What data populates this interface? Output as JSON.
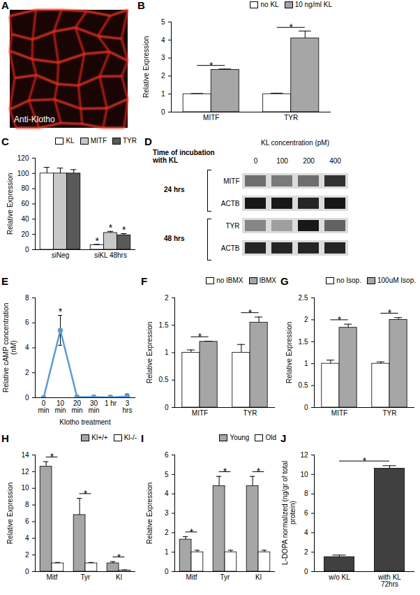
{
  "chart_data": [
    {
      "type": "image",
      "panel": "A",
      "title": "Anti-Klotho"
    },
    {
      "type": "bar",
      "panel": "B",
      "categories": [
        "MITF",
        "TYR"
      ],
      "series": [
        {
          "name": "no KL",
          "color": "#ffffff",
          "values": [
            1,
            1
          ],
          "errors": [
            0.03,
            0.05
          ]
        },
        {
          "name": "10 ng/ml KL",
          "color": "#a6a6a6",
          "values": [
            2.35,
            4.1
          ],
          "errors": [
            0.04,
            0.4
          ]
        }
      ],
      "ylabel": "Relative Expression",
      "ylim": [
        0,
        5
      ],
      "yticks": [
        0,
        1,
        2,
        3,
        4,
        5
      ],
      "legend": "top-right",
      "annotations": [
        {
          "categories": [
            "MITF"
          ],
          "text": "*"
        },
        {
          "categories": [
            "TYR"
          ],
          "text": "*"
        }
      ]
    },
    {
      "type": "bar",
      "panel": "C",
      "categories": [
        "siNeg",
        "siKL 48hrs"
      ],
      "series": [
        {
          "name": "KL",
          "color": "#ffffff",
          "values": [
            100,
            6
          ],
          "errors": [
            8,
            1
          ]
        },
        {
          "name": "MITF",
          "color": "#c8c8c8",
          "values": [
            100,
            22
          ],
          "errors": [
            7,
            2
          ]
        },
        {
          "name": "TYR",
          "color": "#595959",
          "values": [
            100,
            19
          ],
          "errors": [
            5,
            2
          ]
        }
      ],
      "ylabel": "Relative Expression",
      "ylim": [
        0,
        120
      ],
      "yticks": [
        0,
        20,
        40,
        60,
        80,
        100,
        120
      ],
      "legend": "top-right",
      "annotations": [
        {
          "categories": [
            "siKL 48hrs"
          ],
          "series": "KL",
          "text": "*"
        },
        {
          "categories": [
            "siKL 48hrs"
          ],
          "series": "MITF",
          "text": "*"
        },
        {
          "categories": [
            "siKL 48hrs"
          ],
          "series": "TYR",
          "text": "*"
        }
      ]
    },
    {
      "type": "blot",
      "panel": "D",
      "title": "KL concentration (pM)",
      "ylabel": "Time of incubation with KL",
      "concentrations": [
        0,
        100,
        200,
        400
      ],
      "intensity_range": [
        0,
        1
      ],
      "groups": [
        {
          "time": "24 hrs",
          "bands": [
            {
              "protein": "MITF",
              "intensity": [
                0.55,
                0.5,
                0.55,
                0.8
              ]
            },
            {
              "protein": "ACTB",
              "intensity": [
                0.9,
                0.9,
                0.85,
                0.9
              ]
            }
          ]
        },
        {
          "time": "48 hrs",
          "bands": [
            {
              "protein": "TYR",
              "intensity": [
                0.45,
                0.35,
                0.9,
                0.6
              ]
            },
            {
              "protein": "ACTB",
              "intensity": [
                0.85,
                0.85,
                0.85,
                0.85
              ]
            }
          ]
        }
      ]
    },
    {
      "type": "line",
      "panel": "E",
      "categories": [
        "0 min",
        "10 min",
        "20 min",
        "30 min",
        "1 hr",
        "3 hrs"
      ],
      "values": [
        0,
        5.4,
        0.05,
        0.05,
        0.03,
        0.1
      ],
      "errors": [
        0,
        1.2,
        0.1,
        0.1,
        0.15,
        0.2
      ],
      "color": "#5b9bd5",
      "marker": "circle",
      "ylabel": "Relative cAMP concentration (nM)",
      "xlabel": "Klotho treatment",
      "ylim": [
        0,
        8
      ],
      "yticks": [
        0,
        2,
        4,
        6,
        8
      ],
      "annotations": [
        {
          "categories": [
            "10 min"
          ],
          "text": "*"
        }
      ]
    },
    {
      "type": "bar",
      "panel": "F",
      "categories": [
        "MITF",
        "TYR"
      ],
      "series": [
        {
          "name": "no IBMX",
          "color": "#ffffff",
          "values": [
            1,
            1
          ],
          "errors": [
            0.05,
            0.15
          ]
        },
        {
          "name": "IBMX",
          "color": "#a6a6a6",
          "values": [
            1.2,
            1.55
          ],
          "errors": [
            0.01,
            0.1
          ]
        }
      ],
      "ylabel": "Relative Expression",
      "ylim": [
        0,
        2
      ],
      "yticks": [
        0,
        0.5,
        1,
        1.5,
        2
      ],
      "legend": "top-right",
      "annotations": [
        {
          "categories": [
            "MITF"
          ],
          "text": "*"
        },
        {
          "categories": [
            "TYR"
          ],
          "text": "*"
        }
      ]
    },
    {
      "type": "bar",
      "panel": "G",
      "categories": [
        "MITF",
        "TYR"
      ],
      "series": [
        {
          "name": "no Isop.",
          "color": "#ffffff",
          "values": [
            1,
            1
          ],
          "errors": [
            0.08,
            0.04
          ]
        },
        {
          "name": "100uM Isop.",
          "color": "#a6a6a6",
          "values": [
            1.82,
            2.0
          ],
          "errors": [
            0.08,
            0.05
          ]
        }
      ],
      "ylabel": "Relative Expression",
      "ylim": [
        0,
        2.5
      ],
      "yticks": [
        0,
        0.5,
        1,
        1.5,
        2,
        2.5
      ],
      "legend": "top-right",
      "annotations": [
        {
          "categories": [
            "MITF"
          ],
          "text": "*"
        },
        {
          "categories": [
            "TYR"
          ],
          "text": "*"
        }
      ]
    },
    {
      "type": "bar",
      "panel": "H",
      "categories": [
        "Mitf",
        "Tyr",
        "Kl"
      ],
      "series": [
        {
          "name": "Kl+/+",
          "color": "#a6a6a6",
          "values": [
            12.6,
            6.8,
            1.0
          ],
          "errors": [
            0.6,
            2.0,
            0.2
          ]
        },
        {
          "name": "Kl-/-",
          "color": "#ffffff",
          "values": [
            1,
            1,
            0.15
          ],
          "errors": [
            0.1,
            0.1,
            0.05
          ]
        }
      ],
      "ylabel": "Relative Expression",
      "ylim": [
        0,
        14
      ],
      "yticks": [
        0,
        2,
        4,
        6,
        8,
        10,
        12,
        14
      ],
      "legend": "top-right",
      "annotations": [
        {
          "categories": [
            "Mitf"
          ],
          "text": "*"
        },
        {
          "categories": [
            "Tyr"
          ],
          "text": "*"
        },
        {
          "categories": [
            "Kl"
          ],
          "text": "*"
        }
      ]
    },
    {
      "type": "bar",
      "panel": "I",
      "categories": [
        "Mitf",
        "Tyr",
        "Kl"
      ],
      "series": [
        {
          "name": "Young",
          "color": "#a6a6a6",
          "values": [
            1.65,
            4.4,
            4.4
          ],
          "errors": [
            0.15,
            0.5,
            0.5
          ]
        },
        {
          "name": "Old",
          "color": "#ffffff",
          "values": [
            1,
            1,
            1
          ],
          "errors": [
            0.1,
            0.1,
            0.1
          ]
        }
      ],
      "ylabel": "Relative Expression",
      "ylim": [
        0,
        6
      ],
      "yticks": [
        0,
        1,
        2,
        3,
        4,
        5,
        6
      ],
      "legend": "top-right",
      "annotations": [
        {
          "categories": [
            "Mitf"
          ],
          "text": "*"
        },
        {
          "categories": [
            "Tyr"
          ],
          "text": "*"
        },
        {
          "categories": [
            "Kl"
          ],
          "text": "*"
        }
      ]
    },
    {
      "type": "bar",
      "panel": "J",
      "categories": [
        "w/o KL",
        "with KL 72hrs"
      ],
      "values": [
        1.5,
        10.6
      ],
      "errors": [
        0.2,
        0.3
      ],
      "color": "#404040",
      "ylabel": "L-DOPA normalized (ng/gr of total protein)",
      "ylim": [
        0,
        12
      ],
      "yticks": [
        0,
        2,
        4,
        6,
        8,
        10,
        12
      ],
      "annotations": [
        {
          "categories": [
            "w/o KL",
            "with KL 72hrs"
          ],
          "text": "*"
        }
      ]
    }
  ]
}
